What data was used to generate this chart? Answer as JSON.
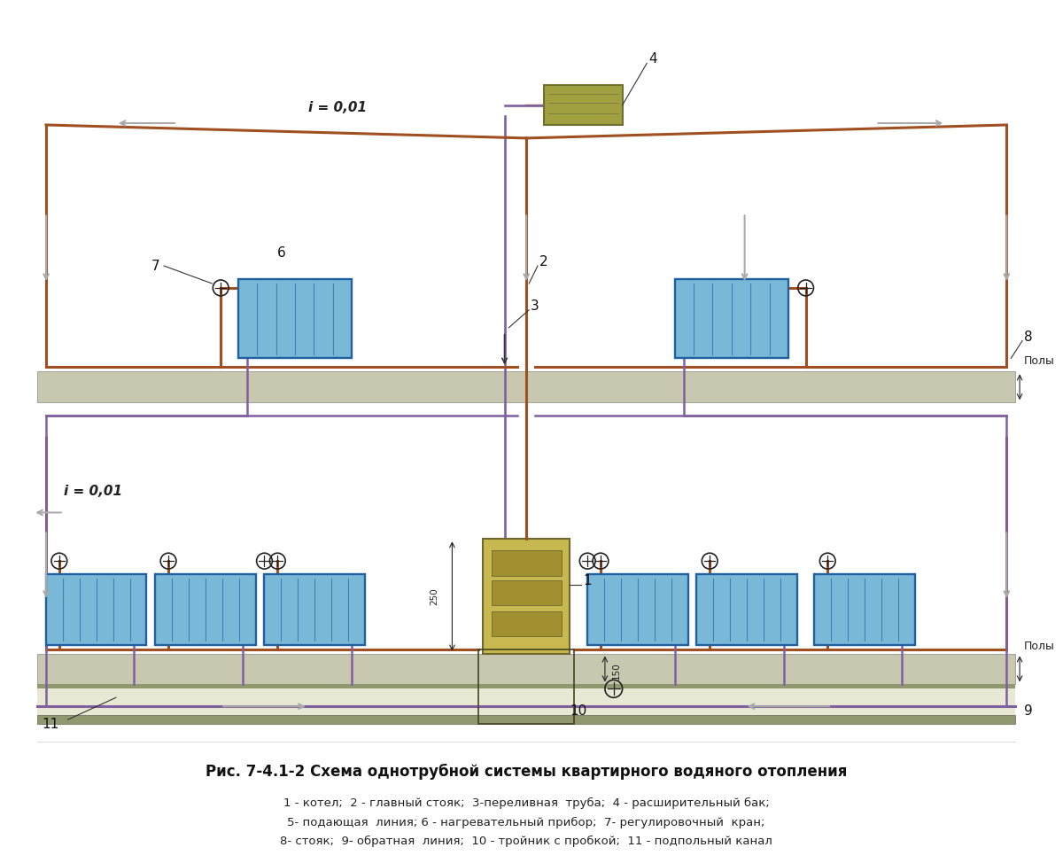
{
  "title": "Рис. 7-4.1-2 Схема однотрубной системы квартирного водяного отопления",
  "legend_line1": "1 - котел;  2 - главный стояк;  3-переливная  труба;  4 - расширительный бак;",
  "legend_line2": "5- подающая  линия; 6 - нагревательный прибор;  7- регулировочный  кран;",
  "legend_line3": "8- стояк;  9- обратная  линия;  10 - тройник с пробкой;  11 - подпольный канал",
  "bg_color": "#ffffff",
  "pipe_supply_color": "#a05020",
  "pipe_return_color": "#8060a0",
  "floor_color": "#c8c8b0",
  "floor_dark_color": "#909870",
  "boiler_color": "#c8b850",
  "boiler_panel_color": "#a09030",
  "radiator_fill": "#7ab8d8",
  "radiator_stroke": "#2060a0",
  "radiator_line_color": "#4080b8",
  "expansion_tank_color": "#a0a040",
  "expansion_tank_stroke": "#707030",
  "label_color": "#222222",
  "i_label": "i = 0,01",
  "dim_250": "250",
  "dim_150": "150",
  "poles_label": "Полы",
  "arrow_color": "#aaaaaa",
  "lw_supply": 2.2,
  "lw_return": 1.8,
  "lw_rad": 1.5,
  "lw_floor": 1.0
}
